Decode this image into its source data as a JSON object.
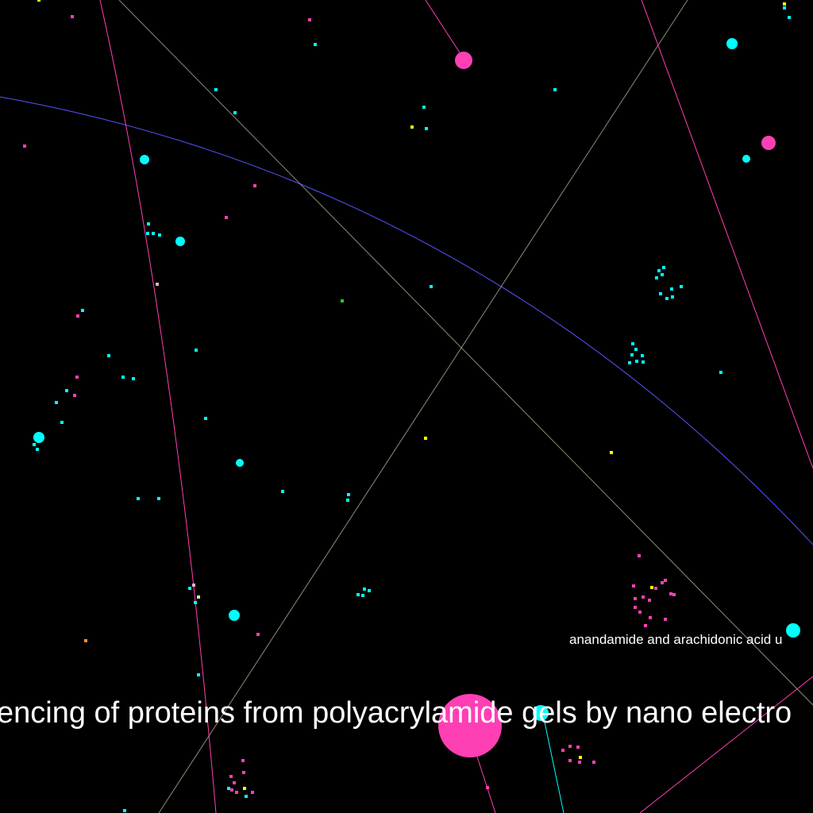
{
  "labels": {
    "big": "encing of proteins from polyacrylamide gels by nano electro",
    "small": "anandamide and arachidonic acid u"
  },
  "colors": {
    "background": "#000000",
    "magenta": "#ff3fb4",
    "cyan": "#00ffff",
    "yellow": "#ffff00",
    "green": "#22cc22",
    "orange": "#ff8c33",
    "blue_edge": "#5555ff",
    "gray_edge": "#c8c8a8"
  }
}
